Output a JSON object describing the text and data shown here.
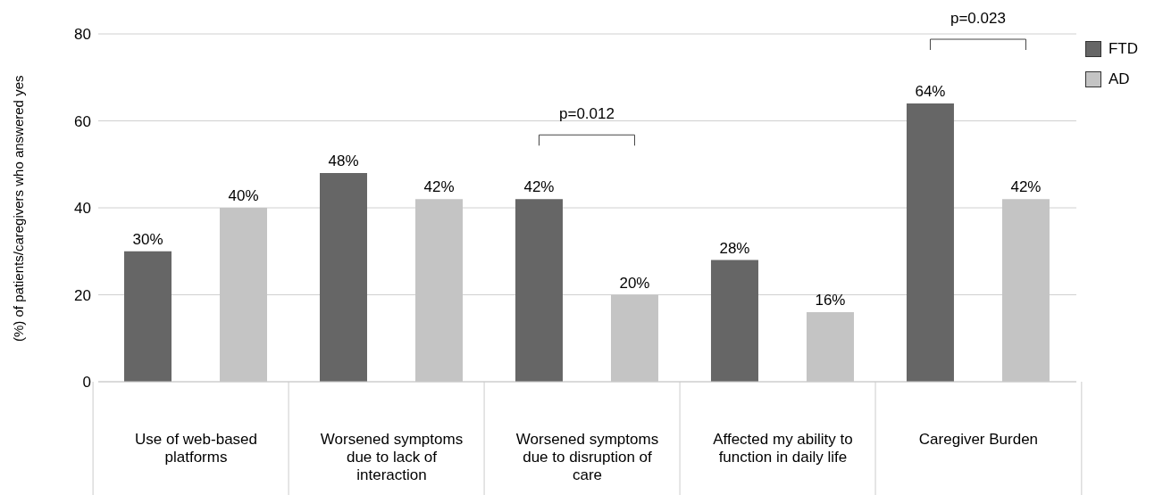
{
  "chart_data": {
    "type": "bar",
    "ylabel": "(%) of patients/caregivers who answered yes",
    "categories": [
      "Use of web-based platforms",
      "Worsened symptoms due to lack of interaction",
      "Worsened symptoms due to disruption of care",
      "Affected my ability to function in daily life",
      "Caregiver Burden"
    ],
    "series": [
      {
        "name": "FTD",
        "color": "#666666",
        "values": [
          30,
          48,
          42,
          28,
          64
        ],
        "value_labels": [
          "30%",
          "48%",
          "42%",
          "28%",
          "64%"
        ]
      },
      {
        "name": "AD",
        "color": "#c4c4c4",
        "values": [
          40,
          42,
          20,
          16,
          42
        ],
        "value_labels": [
          "40%",
          "42%",
          "20%",
          "16%",
          "42%"
        ]
      }
    ],
    "ylim": [
      0,
      80
    ],
    "yticks": [
      0,
      20,
      40,
      60,
      80
    ],
    "grid": "y",
    "legend": "top right",
    "annotations": [
      "p=0.012",
      "p=0.023"
    ]
  }
}
